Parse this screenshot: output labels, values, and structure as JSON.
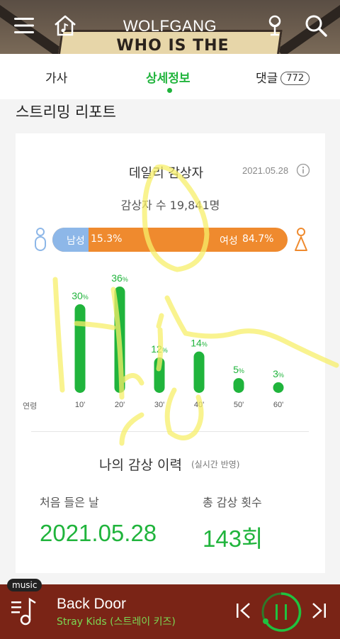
{
  "header": {
    "title": "WOLFGANG",
    "banner_text": "WHO IS THE KING?"
  },
  "tabs": [
    {
      "label": "가사"
    },
    {
      "label": "상세정보",
      "active": true
    },
    {
      "label": "댓글",
      "badge": "772"
    }
  ],
  "section_title": "스트리밍 리포트",
  "daily": {
    "title": "데일리 감상자",
    "date": "2021.05.28",
    "listener_count": "감상자 수 19,841명",
    "male_label": "남성",
    "male_pct": "15.3%",
    "female_label": "여성",
    "female_pct": "84.7%",
    "male_fraction": 0.153,
    "colors": {
      "male": "#8db7e8",
      "female": "#ef8a2e",
      "accent": "#20b43c"
    }
  },
  "chart_data": {
    "type": "bar",
    "xlabel": "연령",
    "categories": [
      "10'",
      "20'",
      "30'",
      "40'",
      "50'",
      "60'"
    ],
    "values": [
      30,
      36,
      12,
      14,
      5,
      3
    ],
    "value_suffix": "%",
    "ylim": [
      0,
      36
    ]
  },
  "history": {
    "title": "나의 감상 이력",
    "note": "(실시간 반영)",
    "first_label": "처음 들은 날",
    "first_value": "2021.05.28",
    "count_label": "총 감상 횟수",
    "count_value": "143회"
  },
  "player": {
    "tag": "music",
    "track_title": "Back Door",
    "track_artist": "Stray Kids (스트레이 키즈)"
  },
  "icons": {
    "menu": "menu-icon",
    "home": "home-music-icon",
    "mic": "microphone-icon",
    "search": "search-icon",
    "info": "info-icon",
    "prev": "previous-track-icon",
    "pause": "pause-icon",
    "next": "next-track-icon"
  }
}
